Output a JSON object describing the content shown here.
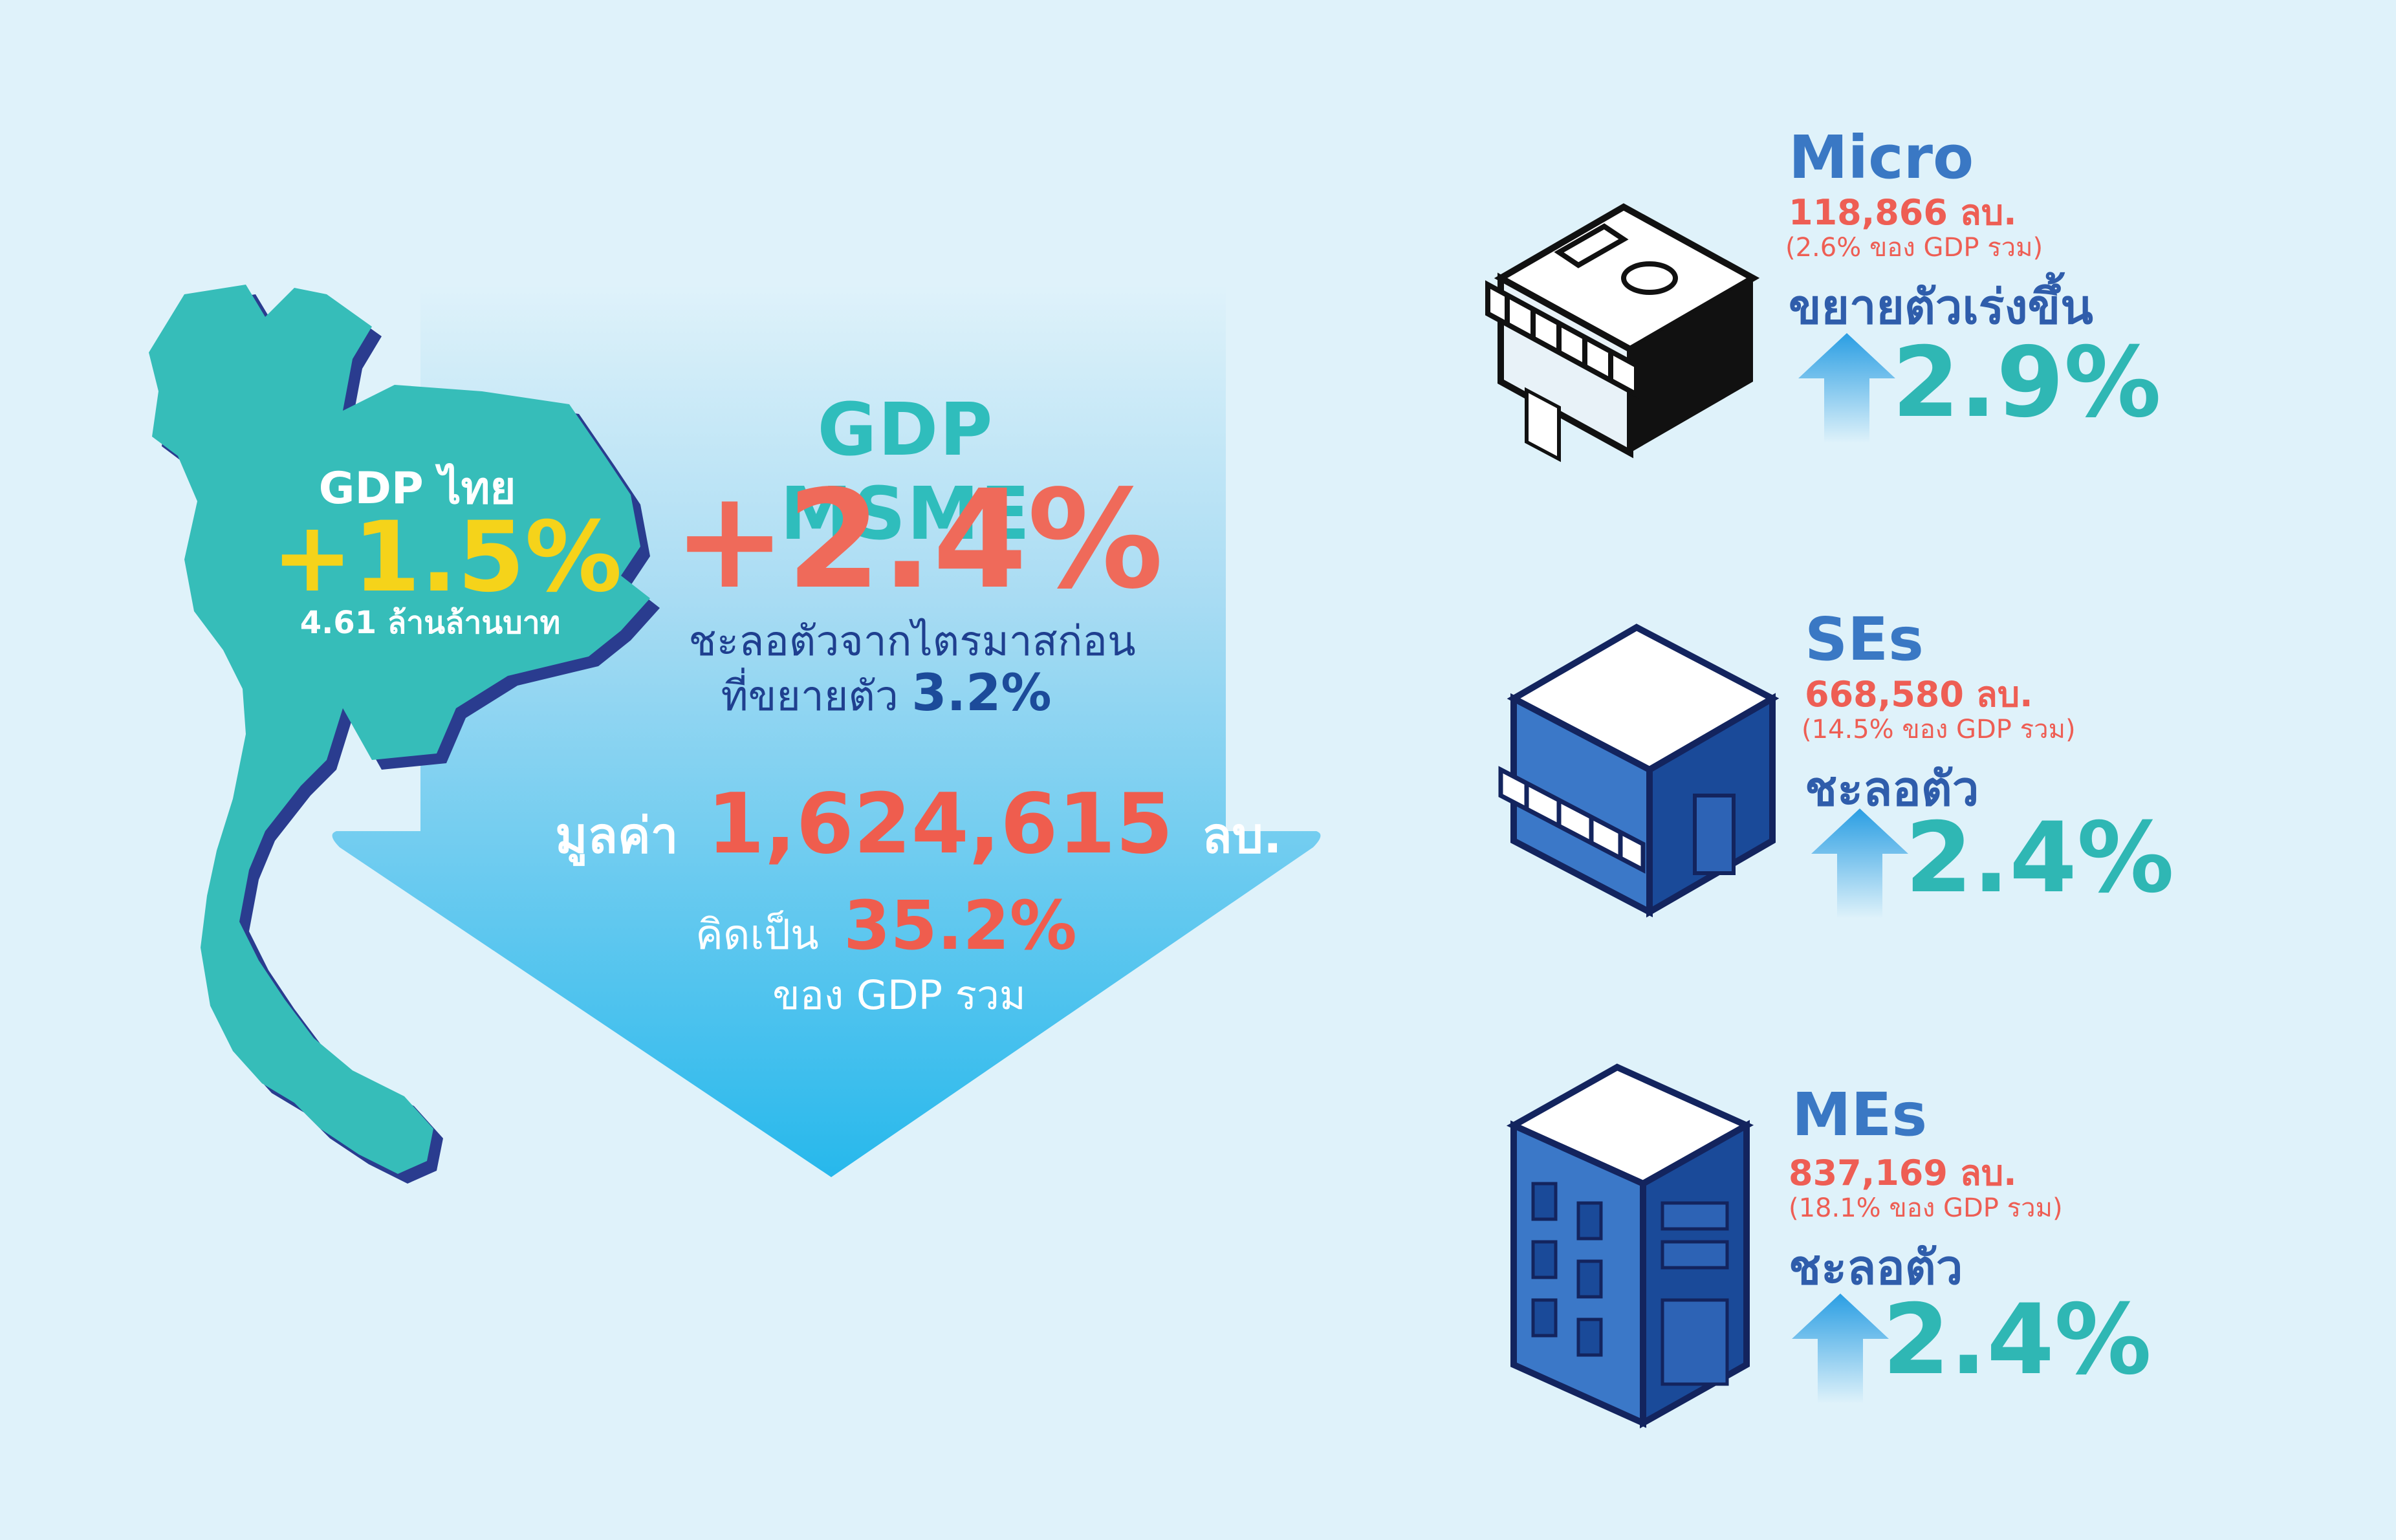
{
  "thailand": {
    "title": "GDP ไทย",
    "growth": "+1.5%",
    "value": "4.61 ล้านล้านบาท"
  },
  "msme": {
    "title": "GDP MSME",
    "growth": "+2.4%",
    "note_line1": "ชะลอตัวจากไตรมาสก่อน",
    "note_line2_prefix": "ที่ขยายตัว",
    "note_line2_value": "3.2%",
    "value_prefix": "มูลค่า",
    "value_number": "1,624,615",
    "value_unit": "ลบ.",
    "share_prefix": "คิดเป็น",
    "share_pct": "35.2%",
    "share_suffix": "ของ GDP รวม"
  },
  "segments": {
    "micro": {
      "title": "Micro",
      "value": "118,866 ลบ.",
      "share": "(2.6% ของ GDP รวม)",
      "status": "ขยายตัวเร่งขึ้น",
      "growth": "2.9%",
      "icon": "storefront-icon"
    },
    "ses": {
      "title": "SEs",
      "value": "668,580 ลบ.",
      "share": "(14.5% ของ GDP รวม)",
      "status": "ชะลอตัว",
      "growth": "2.4%",
      "icon": "shop-building-icon"
    },
    "mes": {
      "title": "MEs",
      "value": "837,169 ลบ.",
      "share": "(18.1% ของ GDP รวม)",
      "status": "ชะลอตัว",
      "growth": "2.4%",
      "icon": "office-building-icon"
    }
  },
  "colors": {
    "background": "#dff2fa",
    "map": "#36bdb9",
    "map_shadow": "#2a3c8f",
    "coral": "#ef5d4e",
    "teal": "#2fbdbc",
    "navy": "#2f5dab",
    "yellow": "#f5d31a"
  }
}
